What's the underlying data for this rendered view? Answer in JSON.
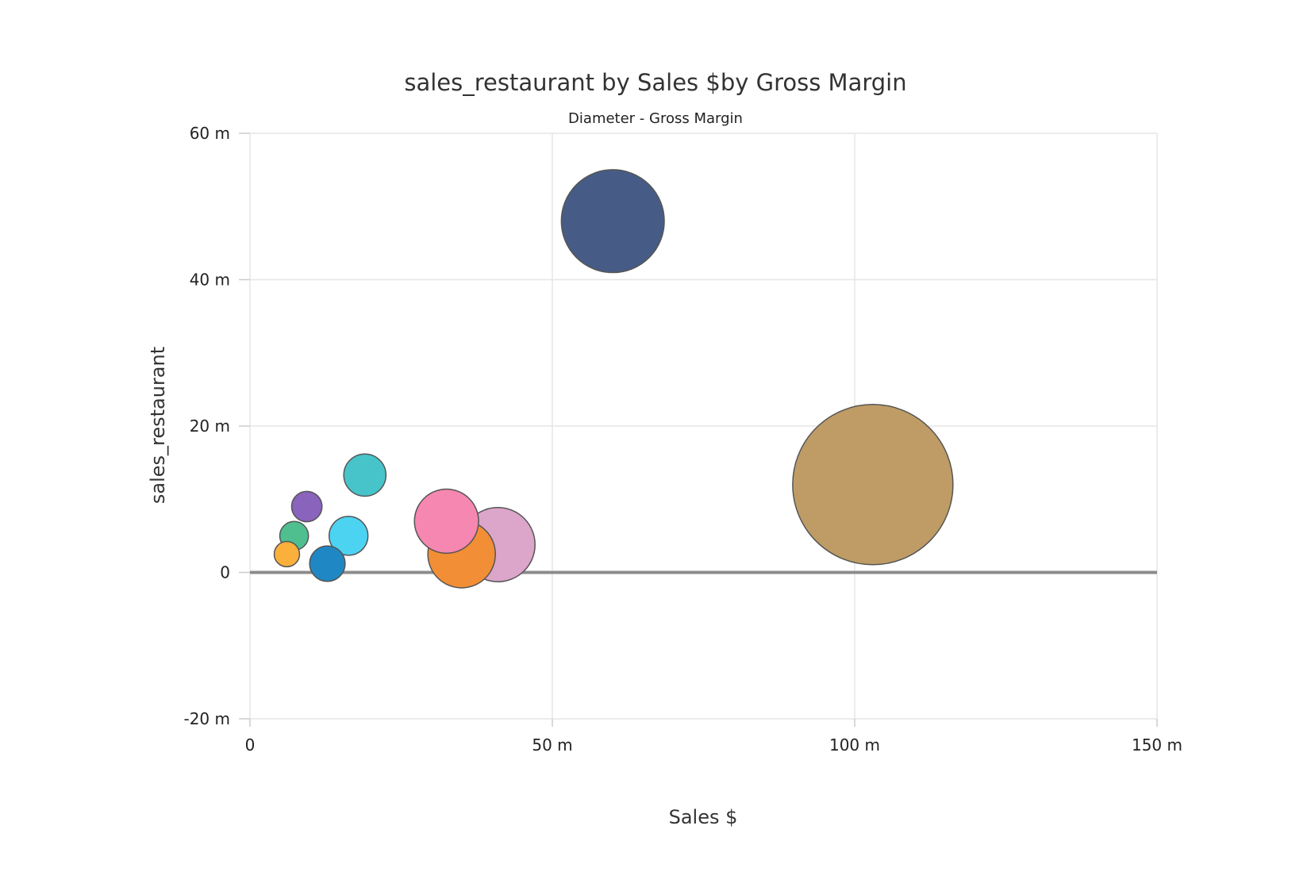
{
  "chart_data": {
    "type": "scatter",
    "title": "sales_restaurant by Sales $by Gross Margin",
    "subtitle": "Diameter - Gross Margin",
    "xlabel": "Sales $",
    "ylabel": "sales_restaurant",
    "xlim": [
      0,
      150000000
    ],
    "ylim": [
      -20000000,
      60000000
    ],
    "x_ticks": [
      {
        "value": 0,
        "label": "0"
      },
      {
        "value": 50000000,
        "label": "50 m"
      },
      {
        "value": 100000000,
        "label": "100 m"
      },
      {
        "value": 150000000,
        "label": "150 m"
      }
    ],
    "y_ticks": [
      {
        "value": -20000000,
        "label": "-20 m"
      },
      {
        "value": 0,
        "label": "0"
      },
      {
        "value": 20000000,
        "label": "20 m"
      },
      {
        "value": 40000000,
        "label": "40 m"
      },
      {
        "value": 60000000,
        "label": "60 m"
      }
    ],
    "grid": true,
    "size_encoding": "Gross Margin",
    "points": [
      {
        "x": 103000000,
        "y": 12000000,
        "size": 95,
        "color": "#bf9c66"
      },
      {
        "x": 60000000,
        "y": 48000000,
        "size": 61,
        "color": "#465c87"
      },
      {
        "x": 41000000,
        "y": 3800000,
        "size": 44,
        "color": "#dba6c9"
      },
      {
        "x": 35000000,
        "y": 2500000,
        "size": 40,
        "color": "#f28e35"
      },
      {
        "x": 32500000,
        "y": 7000000,
        "size": 38,
        "color": "#f587b0"
      },
      {
        "x": 19000000,
        "y": 13300000,
        "size": 25,
        "color": "#47c4c9"
      },
      {
        "x": 16300000,
        "y": 5000000,
        "size": 23,
        "color": "#4dd3f2"
      },
      {
        "x": 12800000,
        "y": 1200000,
        "size": 21,
        "color": "#1f88c4"
      },
      {
        "x": 9400000,
        "y": 9000000,
        "size": 18,
        "color": "#8a63bd"
      },
      {
        "x": 7300000,
        "y": 5000000,
        "size": 17,
        "color": "#4fbf90"
      },
      {
        "x": 6100000,
        "y": 2500000,
        "size": 15,
        "color": "#fbb03b"
      }
    ]
  }
}
